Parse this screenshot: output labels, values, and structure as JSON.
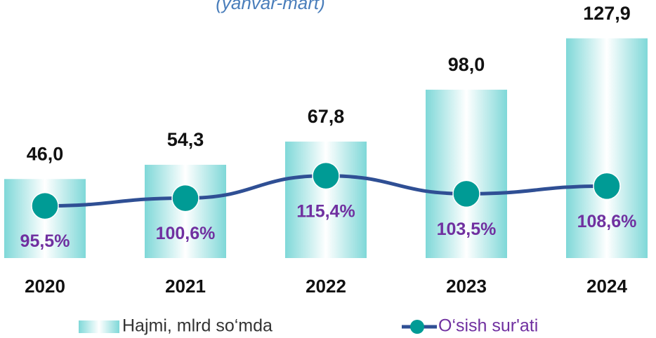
{
  "chart_data": {
    "type": "bar",
    "subtitle": "(yanvar-mart)",
    "categories": [
      "2020",
      "2021",
      "2022",
      "2023",
      "2024"
    ],
    "series": [
      {
        "name": "Hajmi, mlrd so‘mda",
        "type": "bar",
        "color": "#7fd8d8",
        "values": [
          46.0,
          54.3,
          67.8,
          98.0,
          127.9
        ],
        "value_labels": [
          "46,0",
          "54,3",
          "67,8",
          "98,0",
          "127,9"
        ]
      },
      {
        "name": "O‘sish sur'ati",
        "type": "line",
        "axis": "y2",
        "color": "#2f4f94",
        "marker_color": "#009b95",
        "values": [
          95.5,
          100.6,
          115.4,
          103.5,
          108.6
        ],
        "value_labels": [
          "95,5%",
          "100,6%",
          "115,4%",
          "103,5%",
          "108,6%"
        ]
      }
    ],
    "ylim": [
      0,
      140
    ],
    "y2lim": [
      61,
      220
    ],
    "legend": "bottom"
  }
}
